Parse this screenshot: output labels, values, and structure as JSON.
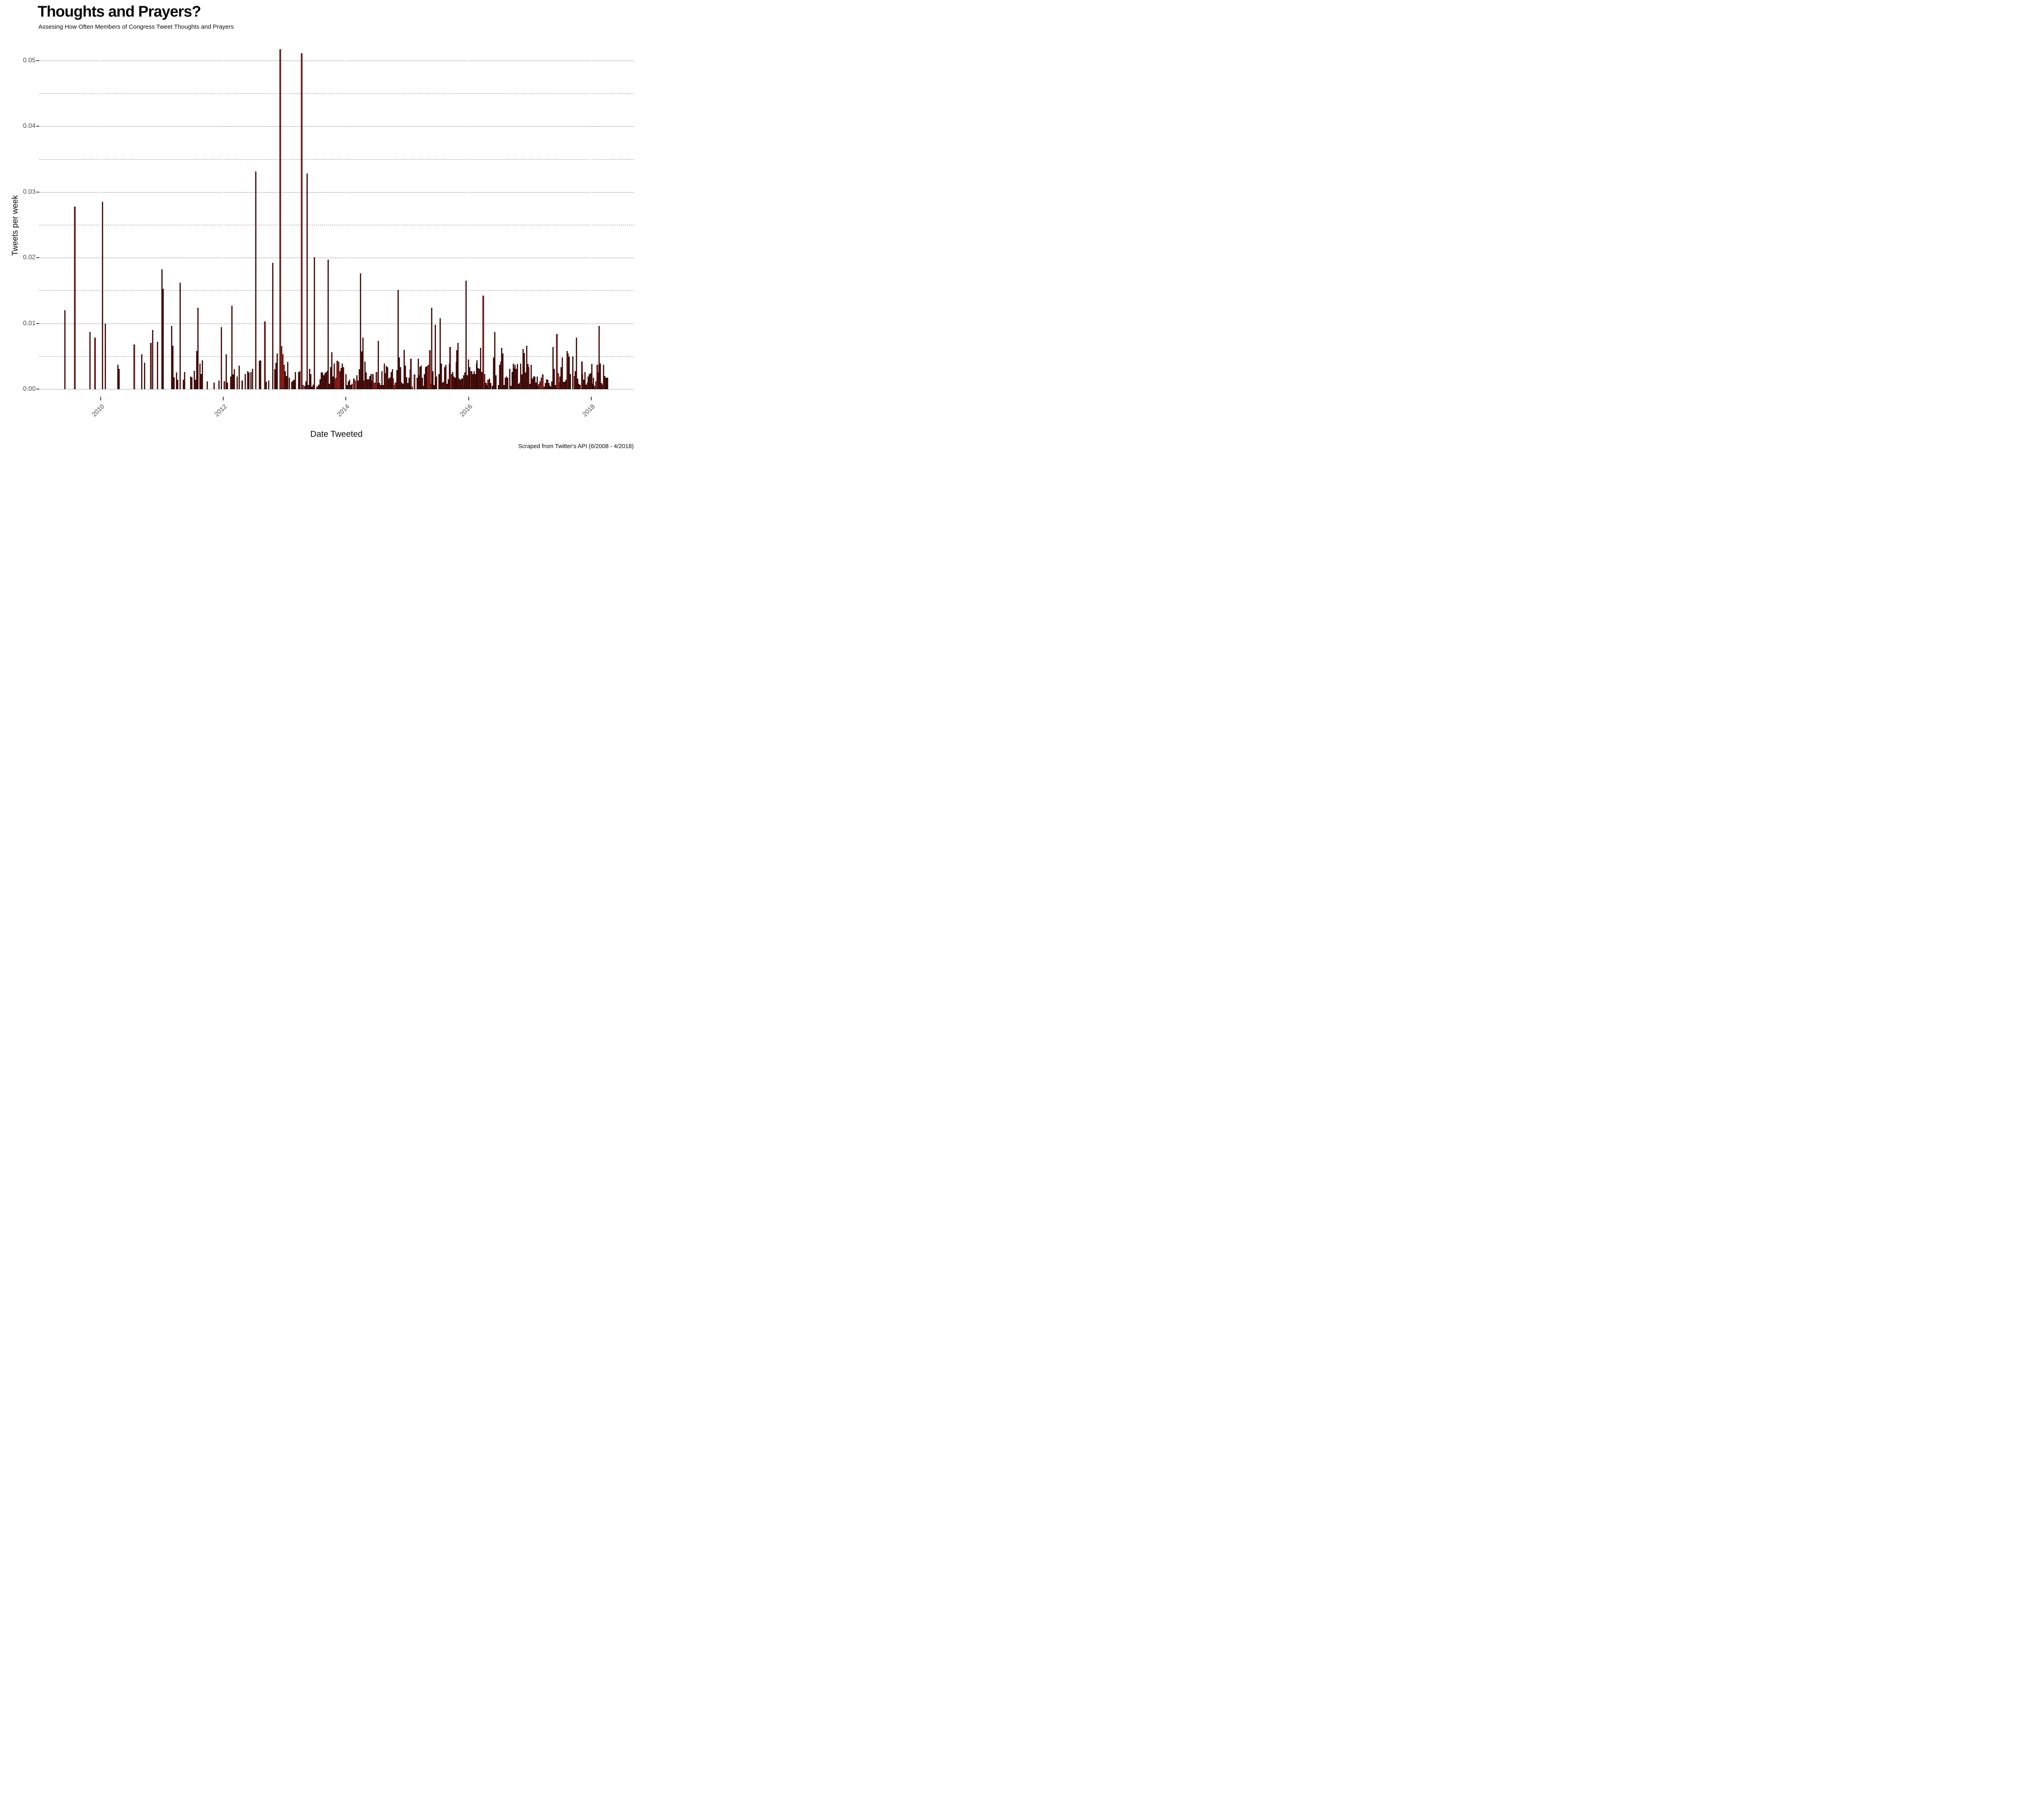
{
  "header": {
    "title": "Thoughts and Prayers?",
    "subtitle": "Assesing How Often Members of Congress Tweet Thoughts and Prayers"
  },
  "caption": "Scraped from Twitter's API (6/2008 - 4/2018)",
  "colors": {
    "bar_fill": "#c42822",
    "bar_border": "#000000",
    "grid_major": "#a9a9a9",
    "grid_minor": "#8c8c8c",
    "tick_label": "#4a4a4a",
    "text": "#0a0a0a",
    "background": "#ffffff"
  },
  "chart_data": {
    "type": "bar",
    "title": "Thoughts and Prayers?",
    "subtitle": "Assesing How Often Members of Congress Tweet Thoughts and Prayers",
    "xlabel": "Date Tweeted",
    "ylabel": "Tweets per week",
    "caption": "Scraped from Twitter's API (6/2008 - 4/2018)",
    "xlim": [
      2009.0,
      2018.7
    ],
    "ylim": [
      0,
      0.0525
    ],
    "grid": {
      "major": "solid",
      "minor": "dashed",
      "vertical_major": "white"
    },
    "legend_position": "none",
    "bar_unit": "week",
    "x_ticks": [
      {
        "label": "2010",
        "t": 2010
      },
      {
        "label": "2012",
        "t": 2012
      },
      {
        "label": "2014",
        "t": 2014
      },
      {
        "label": "2016",
        "t": 2016
      },
      {
        "label": "2018",
        "t": 2018
      }
    ],
    "y_ticks": [
      {
        "label": "0.00",
        "v": 0.0
      },
      {
        "label": "0.01",
        "v": 0.01
      },
      {
        "label": "0.02",
        "v": 0.02
      },
      {
        "label": "0.03",
        "v": 0.03
      },
      {
        "label": "0.04",
        "v": 0.04
      },
      {
        "label": "0.05",
        "v": 0.05
      }
    ],
    "y_minor": [
      0.005,
      0.015,
      0.025,
      0.035,
      0.045
    ],
    "bars": [
      [
        2009.42,
        0.012
      ],
      [
        2009.58,
        0.0278
      ],
      [
        2009.83,
        0.0087
      ],
      [
        2009.91,
        0.0078
      ],
      [
        2010.03,
        0.0285
      ],
      [
        2010.08,
        0.01
      ],
      [
        2010.28,
        0.0037
      ],
      [
        2010.3,
        0.0031
      ],
      [
        2010.55,
        0.0068
      ],
      [
        2010.67,
        0.0053
      ],
      [
        2010.72,
        0.004
      ],
      [
        2010.82,
        0.007
      ],
      [
        2010.85,
        0.009
      ],
      [
        2010.93,
        0.0072
      ],
      [
        2011.0,
        0.0182
      ],
      [
        2011.02,
        0.0153
      ],
      [
        2011.16,
        0.0096
      ],
      [
        2011.18,
        0.0066
      ],
      [
        2011.2,
        0.0018
      ],
      [
        2011.24,
        0.0025
      ],
      [
        2011.26,
        0.0014
      ],
      [
        2011.3,
        0.0162
      ],
      [
        2011.35,
        0.0014
      ],
      [
        2011.37,
        0.0026
      ],
      [
        2011.47,
        0.0019
      ],
      [
        2011.49,
        0.0018
      ],
      [
        2011.53,
        0.0028
      ],
      [
        2011.55,
        0.0014
      ],
      [
        2011.57,
        0.0058
      ],
      [
        2011.59,
        0.0124
      ],
      [
        2011.62,
        0.0039
      ],
      [
        2011.64,
        0.0023
      ],
      [
        2011.66,
        0.0044
      ],
      [
        2011.74,
        0.0012
      ],
      [
        2011.85,
        0.001
      ],
      [
        2011.93,
        0.0013
      ],
      [
        2011.97,
        0.0094
      ],
      [
        2012.02,
        0.0012
      ],
      [
        2012.05,
        0.0053
      ],
      [
        2012.07,
        0.001
      ],
      [
        2012.12,
        0.0019
      ],
      [
        2012.14,
        0.0127
      ],
      [
        2012.16,
        0.0022
      ],
      [
        2012.18,
        0.003
      ],
      [
        2012.23,
        0.0019
      ],
      [
        2012.26,
        0.0036
      ],
      [
        2012.31,
        0.0013
      ],
      [
        2012.36,
        0.0023
      ],
      [
        2012.4,
        0.0027
      ],
      [
        2012.42,
        0.0025
      ],
      [
        2012.45,
        0.0026
      ],
      [
        2012.48,
        0.0031
      ],
      [
        2012.53,
        0.0331
      ],
      [
        2012.59,
        0.0043
      ],
      [
        2012.61,
        0.0044
      ],
      [
        2012.68,
        0.0103
      ],
      [
        2012.7,
        0.0011
      ],
      [
        2012.74,
        0.0013
      ],
      [
        2012.81,
        0.0192
      ],
      [
        2012.84,
        0.003
      ],
      [
        2012.86,
        0.004
      ],
      [
        2012.88,
        0.0054
      ],
      [
        2012.93,
        0.0517
      ],
      [
        2012.95,
        0.0065
      ],
      [
        2012.97,
        0.0053
      ],
      [
        2012.99,
        0.0037
      ],
      [
        2013.01,
        0.0027
      ],
      [
        2013.03,
        0.002
      ],
      [
        2013.05,
        0.0041
      ],
      [
        2013.08,
        0.0017
      ],
      [
        2013.12,
        0.0011
      ],
      [
        2013.14,
        0.0013
      ],
      [
        2013.16,
        0.0014
      ],
      [
        2013.18,
        0.0026
      ],
      [
        2013.23,
        0.0026
      ],
      [
        2013.25,
        0.0027
      ],
      [
        2013.28,
        0.0511
      ],
      [
        2013.3,
        0.0006
      ],
      [
        2013.33,
        0.0005
      ],
      [
        2013.35,
        0.0012
      ],
      [
        2013.37,
        0.0328
      ],
      [
        2013.39,
        0.0006
      ],
      [
        2013.41,
        0.0031
      ],
      [
        2013.43,
        0.0023
      ],
      [
        2013.45,
        0.0004
      ],
      [
        2013.47,
        0.0007
      ],
      [
        2013.49,
        0.0201
      ],
      [
        2013.53,
        0.0004
      ],
      [
        2013.55,
        0.0005
      ],
      [
        2013.56,
        0.0007
      ],
      [
        2013.58,
        0.0015
      ],
      [
        2013.6,
        0.0025
      ],
      [
        2013.62,
        0.0025
      ],
      [
        2013.64,
        0.0021
      ],
      [
        2013.66,
        0.0024
      ],
      [
        2013.68,
        0.0026
      ],
      [
        2013.7,
        0.0028
      ],
      [
        2013.71,
        0.0197
      ],
      [
        2013.73,
        0.0008
      ],
      [
        2013.75,
        0.0033
      ],
      [
        2013.77,
        0.0056
      ],
      [
        2013.79,
        0.0019
      ],
      [
        2013.81,
        0.0039
      ],
      [
        2013.82,
        0.0014
      ],
      [
        2013.84,
        0.0017
      ],
      [
        2013.86,
        0.0043
      ],
      [
        2013.88,
        0.0041
      ],
      [
        2013.9,
        0.0027
      ],
      [
        2013.92,
        0.0032
      ],
      [
        2013.94,
        0.0039
      ],
      [
        2013.96,
        0.0033
      ],
      [
        2014.0,
        0.0023
      ],
      [
        2014.02,
        0.0006
      ],
      [
        2014.04,
        0.0012
      ],
      [
        2014.06,
        0.0014
      ],
      [
        2014.08,
        0.0006
      ],
      [
        2014.1,
        0.0008
      ],
      [
        2014.13,
        0.0016
      ],
      [
        2014.15,
        0.0013
      ],
      [
        2014.18,
        0.0021
      ],
      [
        2014.2,
        0.0013
      ],
      [
        2014.22,
        0.003
      ],
      [
        2014.24,
        0.0176
      ],
      [
        2014.26,
        0.0057
      ],
      [
        2014.28,
        0.0078
      ],
      [
        2014.3,
        0.0013
      ],
      [
        2014.31,
        0.0042
      ],
      [
        2014.33,
        0.0025
      ],
      [
        2014.35,
        0.0015
      ],
      [
        2014.37,
        0.0015
      ],
      [
        2014.39,
        0.002
      ],
      [
        2014.41,
        0.0023
      ],
      [
        2014.43,
        0.0013
      ],
      [
        2014.44,
        0.0023
      ],
      [
        2014.46,
        0.0009
      ],
      [
        2014.48,
        0.001
      ],
      [
        2014.5,
        0.0026
      ],
      [
        2014.52,
        0.0009
      ],
      [
        2014.53,
        0.0073
      ],
      [
        2014.55,
        0.0009
      ],
      [
        2014.57,
        0.0006
      ],
      [
        2014.59,
        0.0027
      ],
      [
        2014.61,
        0.0006
      ],
      [
        2014.63,
        0.0039
      ],
      [
        2014.65,
        0.0024
      ],
      [
        2014.66,
        0.0035
      ],
      [
        2014.68,
        0.0033
      ],
      [
        2014.7,
        0.0016
      ],
      [
        2014.72,
        0.0018
      ],
      [
        2014.74,
        0.0026
      ],
      [
        2014.76,
        0.003
      ],
      [
        2014.77,
        0.0016
      ],
      [
        2014.79,
        0.0006
      ],
      [
        2014.81,
        0.001
      ],
      [
        2014.83,
        0.0029
      ],
      [
        2014.85,
        0.0151
      ],
      [
        2014.87,
        0.0048
      ],
      [
        2014.89,
        0.0033
      ],
      [
        2014.91,
        0.001
      ],
      [
        2014.93,
        0.0008
      ],
      [
        2014.95,
        0.006
      ],
      [
        2014.97,
        0.0036
      ],
      [
        2014.99,
        0.0018
      ],
      [
        2015.01,
        0.0009
      ],
      [
        2015.03,
        0.0017
      ],
      [
        2015.05,
        0.003
      ],
      [
        2015.06,
        0.0046
      ],
      [
        2015.08,
        0.0004
      ],
      [
        2015.12,
        0.0022
      ],
      [
        2015.16,
        0.0017
      ],
      [
        2015.18,
        0.0046
      ],
      [
        2015.2,
        0.0021
      ],
      [
        2015.21,
        0.0034
      ],
      [
        2015.23,
        0.0036
      ],
      [
        2015.25,
        0.0017
      ],
      [
        2015.27,
        0.0005
      ],
      [
        2015.28,
        0.0023
      ],
      [
        2015.3,
        0.0033
      ],
      [
        2015.31,
        0.0034
      ],
      [
        2015.33,
        0.0035
      ],
      [
        2015.35,
        0.0037
      ],
      [
        2015.37,
        0.0059
      ],
      [
        2015.39,
        0.0008
      ],
      [
        2015.4,
        0.0124
      ],
      [
        2015.42,
        0.0027
      ],
      [
        2015.44,
        0.0006
      ],
      [
        2015.46,
        0.0098
      ],
      [
        2015.48,
        0.0019
      ],
      [
        2015.52,
        0.0023
      ],
      [
        2015.54,
        0.0108
      ],
      [
        2015.56,
        0.0039
      ],
      [
        2015.58,
        0.001
      ],
      [
        2015.6,
        0.0011
      ],
      [
        2015.61,
        0.0033
      ],
      [
        2015.63,
        0.0037
      ],
      [
        2015.65,
        0.0008
      ],
      [
        2015.67,
        0.0015
      ],
      [
        2015.69,
        0.0039
      ],
      [
        2015.7,
        0.0064
      ],
      [
        2015.72,
        0.0023
      ],
      [
        2015.74,
        0.0026
      ],
      [
        2015.76,
        0.0019
      ],
      [
        2015.78,
        0.0017
      ],
      [
        2015.8,
        0.0041
      ],
      [
        2015.81,
        0.0059
      ],
      [
        2015.83,
        0.007
      ],
      [
        2015.85,
        0.0016
      ],
      [
        2015.87,
        0.0014
      ],
      [
        2015.89,
        0.0016
      ],
      [
        2015.91,
        0.0016
      ],
      [
        2015.92,
        0.0021
      ],
      [
        2015.94,
        0.0025
      ],
      [
        2015.96,
        0.0165
      ],
      [
        2015.98,
        0.0021
      ],
      [
        2016.0,
        0.0045
      ],
      [
        2016.02,
        0.0033
      ],
      [
        2016.03,
        0.0027
      ],
      [
        2016.05,
        0.0027
      ],
      [
        2016.07,
        0.0023
      ],
      [
        2016.09,
        0.0027
      ],
      [
        2016.11,
        0.0023
      ],
      [
        2016.13,
        0.0039
      ],
      [
        2016.14,
        0.0044
      ],
      [
        2016.16,
        0.0032
      ],
      [
        2016.18,
        0.0031
      ],
      [
        2016.2,
        0.0063
      ],
      [
        2016.22,
        0.0026
      ],
      [
        2016.24,
        0.0142
      ],
      [
        2016.26,
        0.0023
      ],
      [
        2016.27,
        0.001
      ],
      [
        2016.29,
        0.0009
      ],
      [
        2016.31,
        0.0006
      ],
      [
        2016.32,
        0.0014
      ],
      [
        2016.34,
        0.0016
      ],
      [
        2016.36,
        0.0009
      ],
      [
        2016.39,
        0.0005
      ],
      [
        2016.41,
        0.0048
      ],
      [
        2016.43,
        0.0087
      ],
      [
        2016.45,
        0.0021
      ],
      [
        2016.49,
        0.0006
      ],
      [
        2016.51,
        0.0037
      ],
      [
        2016.53,
        0.0042
      ],
      [
        2016.54,
        0.0063
      ],
      [
        2016.56,
        0.0054
      ],
      [
        2016.58,
        0.0006
      ],
      [
        2016.6,
        0.0017
      ],
      [
        2016.62,
        0.0019
      ],
      [
        2016.64,
        0.0017
      ],
      [
        2016.67,
        0.0031
      ],
      [
        2016.69,
        0.0005
      ],
      [
        2016.71,
        0.0026
      ],
      [
        2016.73,
        0.0039
      ],
      [
        2016.74,
        0.0032
      ],
      [
        2016.76,
        0.0037
      ],
      [
        2016.78,
        0.0031
      ],
      [
        2016.8,
        0.0038
      ],
      [
        2016.82,
        0.0008
      ],
      [
        2016.84,
        0.001
      ],
      [
        2016.85,
        0.0039
      ],
      [
        2016.87,
        0.0022
      ],
      [
        2016.89,
        0.0061
      ],
      [
        2016.91,
        0.0055
      ],
      [
        2016.93,
        0.0025
      ],
      [
        2016.95,
        0.0066
      ],
      [
        2016.97,
        0.0038
      ],
      [
        2016.98,
        0.0033
      ],
      [
        2017.0,
        0.0008
      ],
      [
        2017.02,
        0.0037
      ],
      [
        2017.04,
        0.0016
      ],
      [
        2017.06,
        0.0019
      ],
      [
        2017.08,
        0.0019
      ],
      [
        2017.1,
        0.001
      ],
      [
        2017.12,
        0.0019
      ],
      [
        2017.13,
        0.0005
      ],
      [
        2017.15,
        0.0008
      ],
      [
        2017.17,
        0.0012
      ],
      [
        2017.19,
        0.0017
      ],
      [
        2017.21,
        0.0022
      ],
      [
        2017.23,
        0.0004
      ],
      [
        2017.25,
        0.0009
      ],
      [
        2017.27,
        0.0015
      ],
      [
        2017.29,
        0.0014
      ],
      [
        2017.31,
        0.0009
      ],
      [
        2017.33,
        0.0005
      ],
      [
        2017.34,
        0.0003
      ],
      [
        2017.36,
        0.0012
      ],
      [
        2017.38,
        0.0064
      ],
      [
        2017.4,
        0.0031
      ],
      [
        2017.42,
        0.0006
      ],
      [
        2017.44,
        0.0084
      ],
      [
        2017.46,
        0.0024
      ],
      [
        2017.48,
        0.001
      ],
      [
        2017.49,
        0.0019
      ],
      [
        2017.51,
        0.0033
      ],
      [
        2017.53,
        0.0048
      ],
      [
        2017.55,
        0.0011
      ],
      [
        2017.57,
        0.0011
      ],
      [
        2017.59,
        0.0014
      ],
      [
        2017.61,
        0.0058
      ],
      [
        2017.62,
        0.0054
      ],
      [
        2017.64,
        0.0049
      ],
      [
        2017.66,
        0.0023
      ],
      [
        2017.7,
        0.005
      ],
      [
        2017.73,
        0.002
      ],
      [
        2017.74,
        0.0027
      ],
      [
        2017.76,
        0.0078
      ],
      [
        2017.78,
        0.0016
      ],
      [
        2017.8,
        0.0008
      ],
      [
        2017.82,
        0.0006
      ],
      [
        2017.85,
        0.0042
      ],
      [
        2017.86,
        0.0022
      ],
      [
        2017.88,
        0.0014
      ],
      [
        2017.9,
        0.0026
      ],
      [
        2017.92,
        0.0007
      ],
      [
        2017.94,
        0.001
      ],
      [
        2017.95,
        0.0019
      ],
      [
        2017.97,
        0.0023
      ],
      [
        2017.99,
        0.0024
      ],
      [
        2018.01,
        0.0038
      ],
      [
        2018.03,
        0.0008
      ],
      [
        2018.04,
        0.0017
      ],
      [
        2018.06,
        0.0005
      ],
      [
        2018.08,
        0.0012
      ],
      [
        2018.1,
        0.0037
      ],
      [
        2018.11,
        0.0025
      ],
      [
        2018.13,
        0.0096
      ],
      [
        2018.15,
        0.0039
      ],
      [
        2018.17,
        0.0009
      ],
      [
        2018.19,
        0.0007
      ],
      [
        2018.2,
        0.0037
      ],
      [
        2018.22,
        0.002
      ],
      [
        2018.24,
        0.0017
      ],
      [
        2018.26,
        0.0017
      ],
      [
        2018.27,
        0.0017
      ]
    ]
  }
}
